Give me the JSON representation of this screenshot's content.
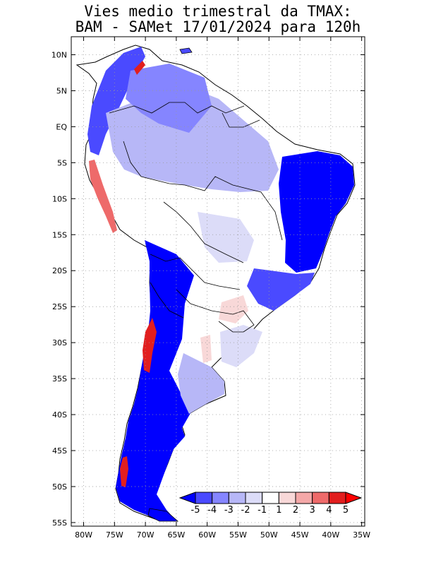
{
  "title": {
    "line1": "Vies medio trimestral da TMAX:",
    "line2": "BAM - SAMet 17/01/2024  para 120h"
  },
  "axes": {
    "lat_ticks": [
      "10N",
      "5N",
      "EQ",
      "5S",
      "10S",
      "15S",
      "20S",
      "25S",
      "30S",
      "35S",
      "40S",
      "45S",
      "50S",
      "55S"
    ],
    "lon_ticks": [
      "80W",
      "75W",
      "70W",
      "65W",
      "60W",
      "55W",
      "50W",
      "45W",
      "40W",
      "35W"
    ],
    "lat_range": [
      -55.5,
      12.5
    ],
    "lon_range": [
      -82,
      -34.5
    ],
    "grid": "dotted"
  },
  "colorbar": {
    "labels": [
      "-5",
      "-4",
      "-3",
      "-2",
      "-1",
      "1",
      "2",
      "3",
      "4",
      "5"
    ],
    "colors": [
      "#0000ff",
      "#4a4aff",
      "#8585ff",
      "#b7b7f7",
      "#dcdcf8",
      "#ffffff",
      "#f8d8d8",
      "#f4a8a8",
      "#ee6a6a",
      "#e21e1e",
      "#ff0000"
    ]
  }
}
